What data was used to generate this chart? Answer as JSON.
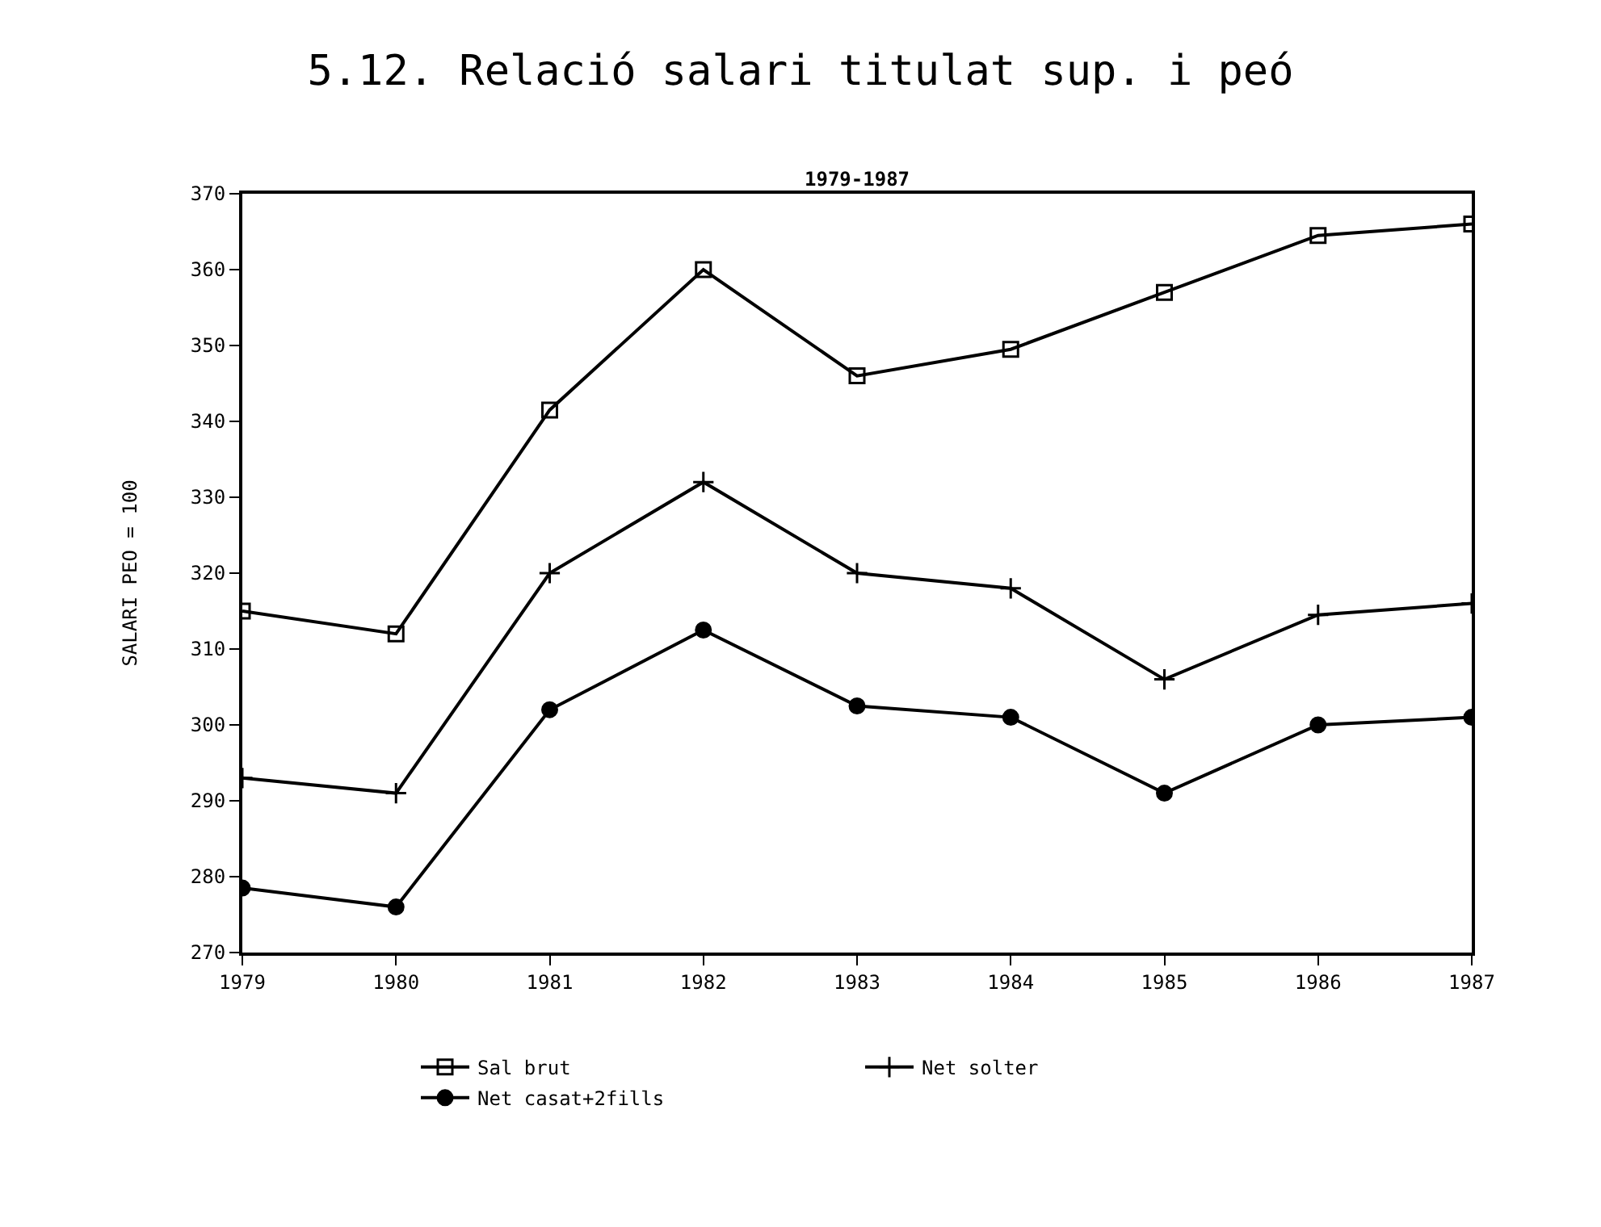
{
  "chart_data": {
    "type": "line",
    "title": "5.12. Relació salari titulat sup. i peó",
    "subtitle": "1979-1987",
    "ylabel": "SALARI PEO = 100",
    "x": [
      1979,
      1980,
      1981,
      1982,
      1983,
      1984,
      1985,
      1986,
      1987
    ],
    "xlim": [
      1979,
      1987
    ],
    "xticks": [
      1979,
      1980,
      1981,
      1982,
      1983,
      1984,
      1985,
      1986,
      1987
    ],
    "ylim": [
      270,
      370
    ],
    "yticks": [
      270,
      280,
      290,
      300,
      310,
      320,
      330,
      340,
      350,
      360,
      370
    ],
    "grid": false,
    "legend": "bottom",
    "line_style": "solid",
    "series": [
      {
        "name": "Sal brut",
        "color": "#000000",
        "marker": "square",
        "values": [
          315,
          312,
          341.5,
          360,
          346,
          349.5,
          357,
          364.5,
          366
        ]
      },
      {
        "name": "Net solter",
        "color": "#000000",
        "marker": "cross",
        "values": [
          293,
          291,
          320,
          332,
          320,
          318,
          306,
          314.5,
          316
        ]
      },
      {
        "name": "Net casat+2fills",
        "color": "#000000",
        "marker": "circle",
        "values": [
          278.5,
          276,
          302,
          312.5,
          302.5,
          301,
          291,
          300,
          301
        ]
      }
    ]
  }
}
